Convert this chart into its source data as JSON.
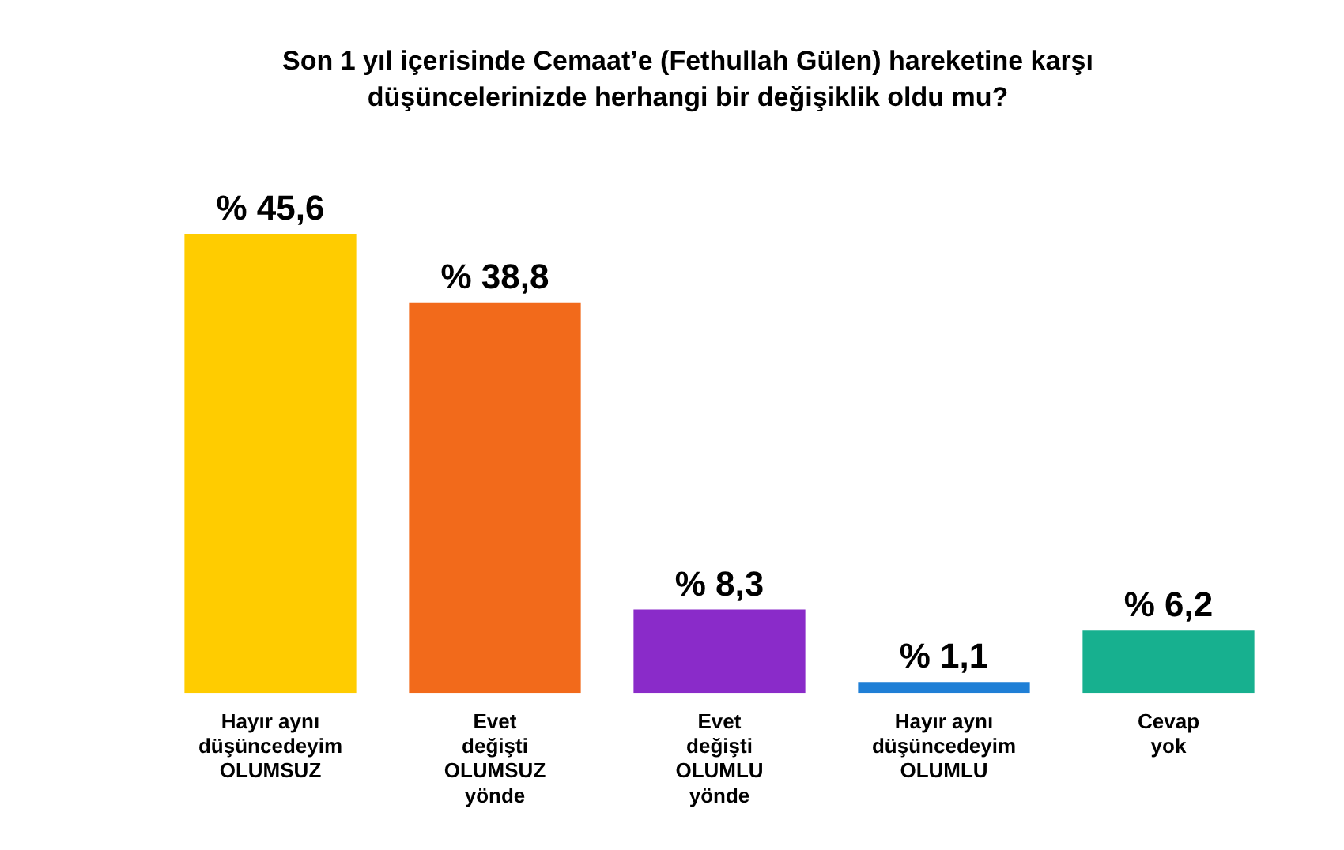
{
  "chart_data": {
    "type": "bar",
    "title": "Son 1 yıl içerisinde Cemaat’e (Fethullah Gülen) hareketine karşı düşüncelerinizde herhangi bir değişiklik oldu mu?",
    "categories": [
      "Hayır aynı\ndüşüncedeyim\nOLUMSUZ",
      "Evet\ndeğişti\nOLUMSUZ\nyönde",
      "Evet\ndeğişti\nOLUMLU\nyönde",
      "Hayır aynı\ndüşüncedeyim\nOLUMLU",
      "Cevap\nyok"
    ],
    "values": [
      45.6,
      38.8,
      8.3,
      1.1,
      6.2
    ],
    "colors": [
      "#ffcc00",
      "#f26a1b",
      "#8a2bc9",
      "#1f7fd6",
      "#17b08f"
    ],
    "value_labels": [
      "% 45,6",
      "% 38,8",
      "% 8,3",
      "% 1,1",
      "% 6,2"
    ],
    "tick_labels": "x",
    "grid": false,
    "legend": false
  }
}
